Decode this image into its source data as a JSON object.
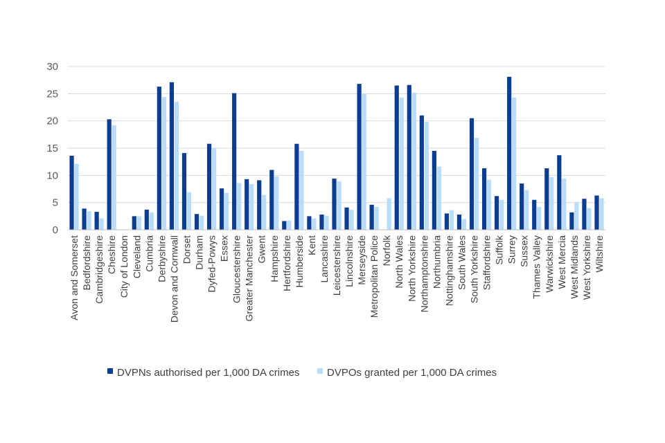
{
  "chart_data": {
    "type": "bar",
    "title": "",
    "xlabel": "",
    "ylabel": "",
    "ylim": [
      0,
      30
    ],
    "yticks": [
      0,
      5,
      10,
      15,
      20,
      25,
      30
    ],
    "grid": true,
    "legend_position": "bottom",
    "categories": [
      "Avon and Somerset",
      "Bedfordshire",
      "Cambridgeshire",
      "Cheshire",
      "City of London",
      "Cleveland",
      "Cumbria",
      "Derbyshire",
      "Devon and Cornwall",
      "Dorset",
      "Durham",
      "Dyfed-Powys",
      "Essex",
      "Gloucestershire",
      "Greater Manchester",
      "Gwent",
      "Hampshire",
      "Hertfordshire",
      "Humberside",
      "Kent",
      "Lancashire",
      "Leicestershire",
      "Lincolnshire",
      "Merseyside",
      "Metropolitan Police",
      "Norfolk",
      "North Wales",
      "North Yorkshire",
      "Northamptonshire",
      "Northumbria",
      "Nottinghamshire",
      "South Wales",
      "South Yorkshire",
      "Staffordshire",
      "Suffolk",
      "Surrey",
      "Sussex",
      "Thames Valley",
      "Warwickshire",
      "West Mercia",
      "West Midlands",
      "West Yorkshire",
      "Wiltshire"
    ],
    "series": [
      {
        "name": "DVPNs authorised per 1,000 DA crimes",
        "color": "#0d3d91",
        "values": [
          13.6,
          3.9,
          3.3,
          20.3,
          0,
          2.5,
          3.7,
          26.3,
          27.1,
          14.1,
          2.9,
          15.8,
          7.6,
          25.1,
          9.3,
          9.1,
          11.0,
          1.6,
          15.8,
          2.5,
          2.8,
          9.4,
          4.1,
          26.8,
          4.6,
          0,
          26.5,
          26.6,
          21.0,
          14.5,
          3.0,
          2.8,
          20.5,
          11.3,
          6.2,
          28.1,
          8.5,
          5.5,
          11.3,
          13.7,
          3.2,
          5.7,
          6.3
        ]
      },
      {
        "name": "DVPOs granted per 1,000 DA crimes",
        "color": "#b9dcfa",
        "values": [
          12.1,
          3.4,
          2.1,
          19.2,
          0,
          2.5,
          3.2,
          24.4,
          23.5,
          6.9,
          2.6,
          15.0,
          6.8,
          8.6,
          8.4,
          6.4,
          9.8,
          1.7,
          14.5,
          2.1,
          2.6,
          8.9,
          3.7,
          25.0,
          4.2,
          5.8,
          24.3,
          25.2,
          19.8,
          11.6,
          3.6,
          2.0,
          16.9,
          9.2,
          5.5,
          24.3,
          7.3,
          4.2,
          9.7,
          9.4,
          5.1,
          4.0,
          5.8
        ]
      }
    ]
  }
}
